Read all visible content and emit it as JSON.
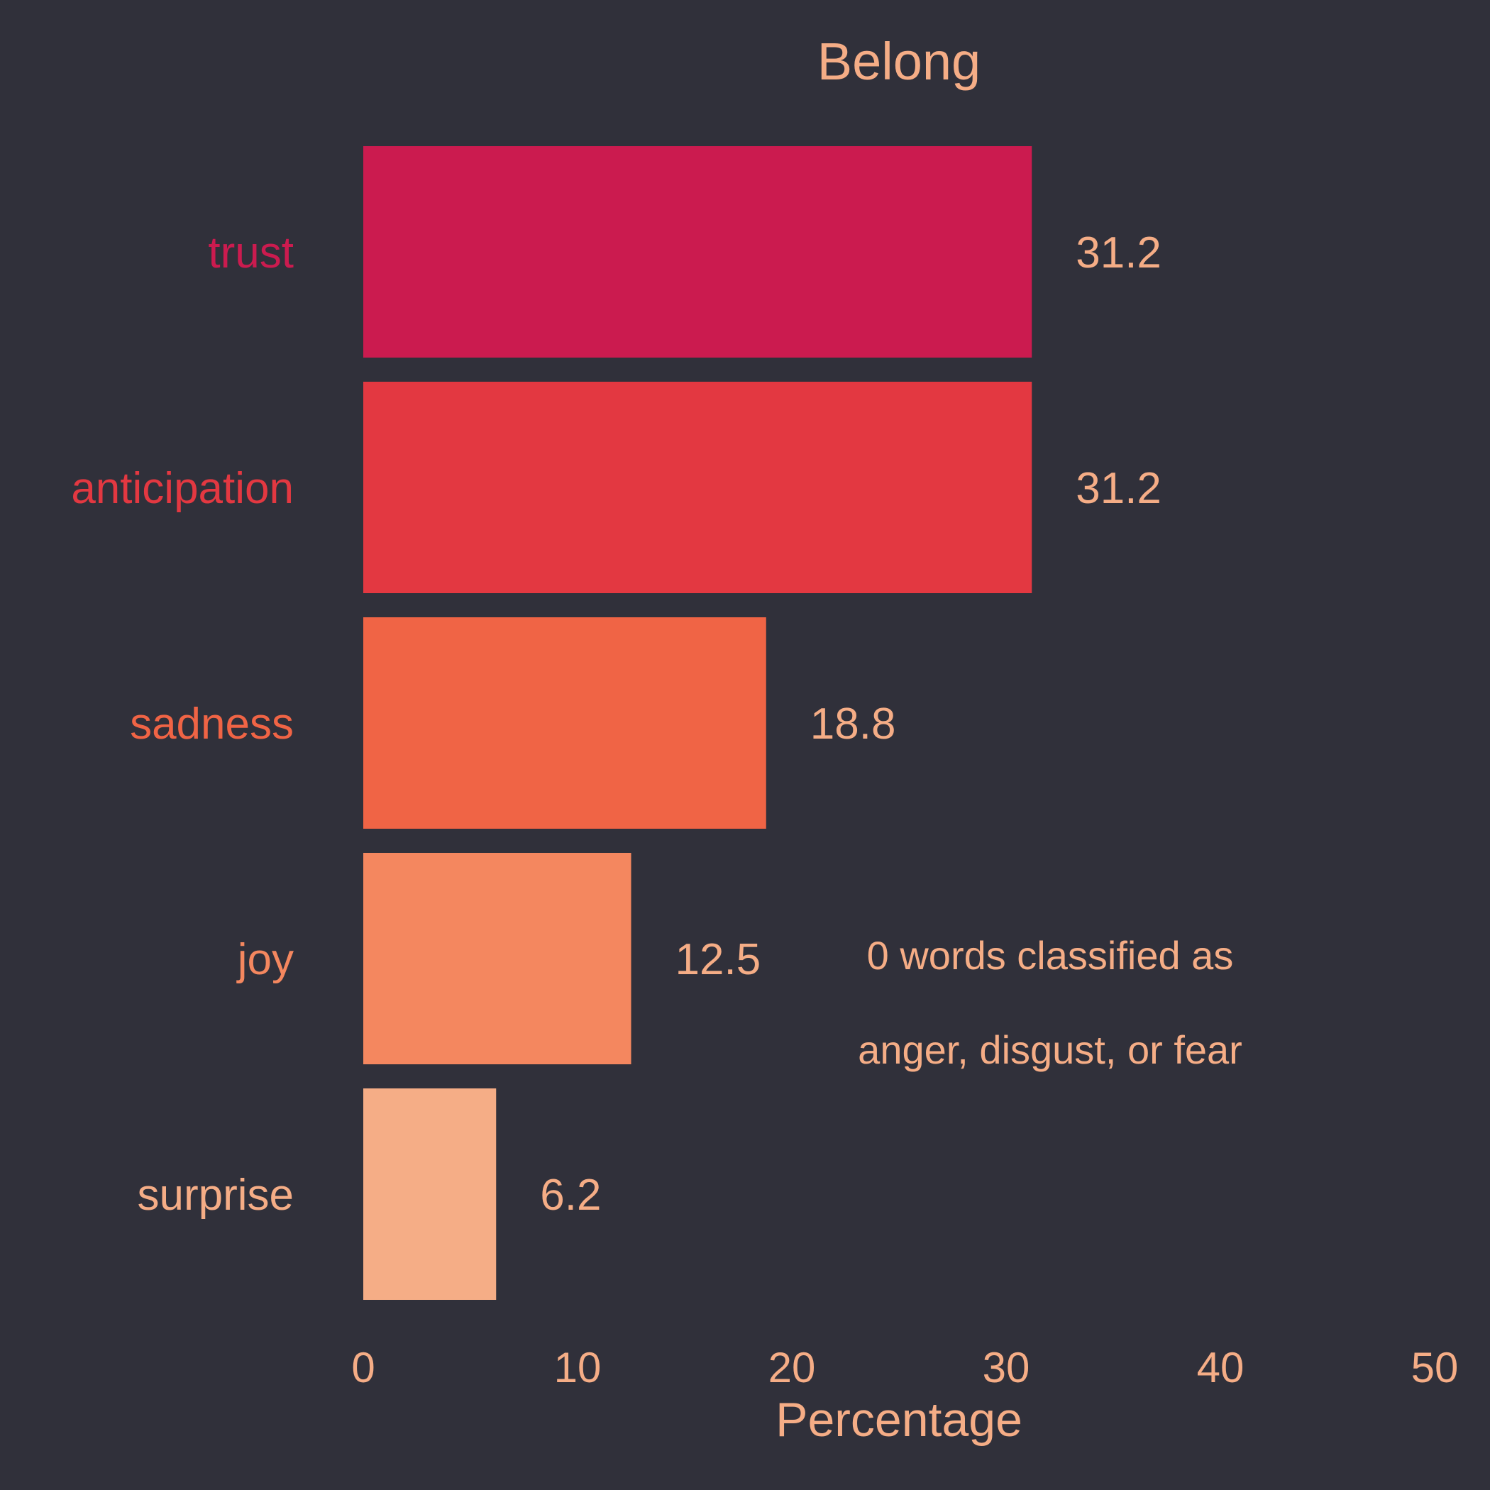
{
  "chart_data": {
    "type": "bar",
    "orientation": "horizontal",
    "title": "Belong",
    "xlabel": "Percentage",
    "ylabel": "",
    "xlim": [
      0,
      50
    ],
    "xticks": [
      "0",
      "10",
      "20",
      "30",
      "40",
      "50"
    ],
    "grid": false,
    "legend": "none",
    "categories": [
      "trust",
      "anticipation",
      "sadness",
      "joy",
      "surprise"
    ],
    "values": [
      31.2,
      31.2,
      18.8,
      12.5,
      6.2
    ],
    "value_labels": [
      "31.2",
      "31.2",
      "18.8",
      "12.5",
      "6.2"
    ],
    "colors": [
      "#cb1b4f",
      "#e33841",
      "#f06445",
      "#f4875f",
      "#f5ad86"
    ],
    "annotation": [
      "0 words classified as",
      "anger, disgust, or fear"
    ],
    "background_color": "#30303a",
    "text_color": "#f5ad86"
  }
}
